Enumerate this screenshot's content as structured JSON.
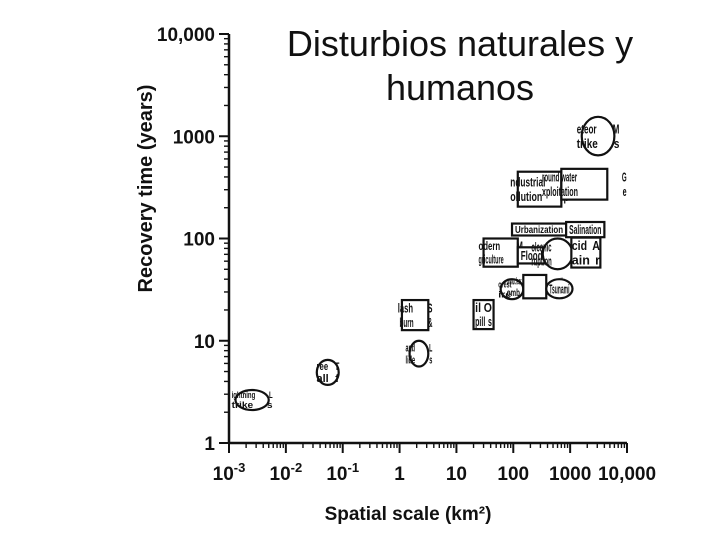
{
  "slide": {
    "title_line1": "Disturbios naturales y",
    "title_line2": "humanos"
  },
  "colors": {
    "ink": "#111111",
    "background": "#ffffff"
  },
  "chart_data": {
    "type": "scatter",
    "xscale": "log",
    "yscale": "log",
    "xlabel": "Spatial scale (km²)",
    "ylabel": "Recovery time (years)",
    "xlim": [
      0.001,
      10000
    ],
    "ylim": [
      1,
      10000
    ],
    "grid": false,
    "xticks": [
      {
        "value": 0.001,
        "base": "10",
        "exp": "-3"
      },
      {
        "value": 0.01,
        "base": "10",
        "exp": "-2"
      },
      {
        "value": 0.1,
        "base": "10",
        "exp": "-1"
      },
      {
        "value": 1,
        "base": "1",
        "exp": ""
      },
      {
        "value": 10,
        "base": "10",
        "exp": ""
      },
      {
        "value": 100,
        "base": "100",
        "exp": ""
      },
      {
        "value": 1000,
        "base": "1000",
        "exp": ""
      },
      {
        "value": 10000,
        "base": "10,000",
        "exp": ""
      }
    ],
    "yticks": [
      {
        "value": 1,
        "label": "1"
      },
      {
        "value": 10,
        "label": "10"
      },
      {
        "value": 100,
        "label": "100"
      },
      {
        "value": 1000,
        "label": "1000"
      },
      {
        "value": 10000,
        "label": "10,000"
      }
    ],
    "disturbances": [
      {
        "lines": [
          "Lightning",
          "strike"
        ],
        "shape": "ellipse",
        "x": [
          0.0013,
          0.005
        ],
        "y": [
          2.1,
          3.3
        ]
      },
      {
        "lines": [
          "Tree",
          "fall"
        ],
        "shape": "ellipse",
        "x": [
          0.035,
          0.085
        ],
        "y": [
          3.7,
          6.5
        ]
      },
      {
        "lines": [
          "Land",
          "slide"
        ],
        "shape": "ellipse",
        "x": [
          1.5,
          3.2
        ],
        "y": [
          5.6,
          10
        ]
      },
      {
        "lines": [
          "Slash",
          "& burn"
        ],
        "shape": "rect",
        "x": [
          1.1,
          3.2
        ],
        "y": [
          12.7,
          25
        ]
      },
      {
        "lines": [
          "Oil",
          "spill"
        ],
        "shape": "rect",
        "x": [
          20,
          45
        ],
        "y": [
          13,
          25
        ]
      },
      {
        "lines": [
          "Forest",
          "fire"
        ],
        "shape": "ellipse",
        "x": [
          60,
          150
        ],
        "y": [
          25.5,
          40
        ]
      },
      {
        "lines": [
          "Nonnuclear",
          "bomb"
        ],
        "shape": "rect",
        "x": [
          150,
          380
        ],
        "y": [
          26,
          44
        ]
      },
      {
        "lines": [
          "Tsunami"
        ],
        "shape": "ellipse",
        "x": [
          380,
          1100
        ],
        "y": [
          26,
          40
        ]
      },
      {
        "lines": [
          "Modern",
          "agriculture"
        ],
        "shape": "rect",
        "x": [
          30,
          120
        ],
        "y": [
          53,
          100
        ]
      },
      {
        "lines": [
          "Flood"
        ],
        "shape": "rect",
        "x": [
          120,
          370
        ],
        "y": [
          57,
          82
        ]
      },
      {
        "lines": [
          "Volcanic",
          "eruption"
        ],
        "shape": "ellipse",
        "x": [
          330,
          1100
        ],
        "y": [
          50,
          100
        ]
      },
      {
        "lines": [
          "Acid",
          "rain"
        ],
        "shape": "rect",
        "x": [
          1050,
          3400
        ],
        "y": [
          52,
          102
        ]
      },
      {
        "lines": [
          "Urbanization"
        ],
        "shape": "rect",
        "x": [
          95,
          850
        ],
        "y": [
          107,
          140
        ]
      },
      {
        "lines": [
          "Salination"
        ],
        "shape": "rect",
        "x": [
          850,
          4000
        ],
        "y": [
          103,
          145
        ]
      },
      {
        "lines": [
          "Industrial",
          "pollution"
        ],
        "shape": "rect",
        "x": [
          120,
          700
        ],
        "y": [
          205,
          450
        ]
      },
      {
        "lines": [
          "Ground water",
          "exploitation"
        ],
        "shape": "rect",
        "x": [
          700,
          4500
        ],
        "y": [
          240,
          480
        ]
      },
      {
        "lines": [
          "Meteor",
          "strike"
        ],
        "shape": "ellipse",
        "x": [
          1600,
          6000
        ],
        "y": [
          650,
          1550
        ]
      }
    ]
  }
}
